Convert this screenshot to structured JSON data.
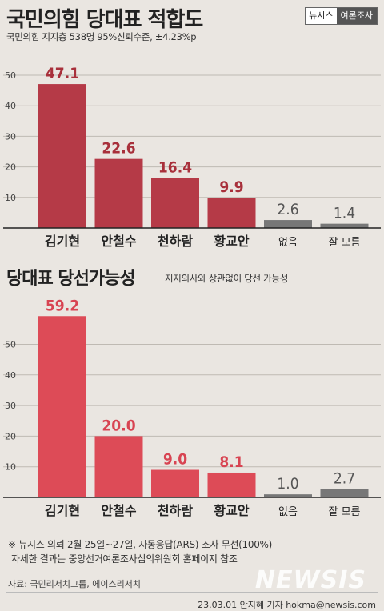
{
  "header": {
    "title": "국민의힘 당대표 적합도",
    "subtitle": "국민의힘 지지층 538명   95%신뢰수준,  ±4.23%p",
    "brand_left": "뉴시스",
    "brand_right": "여론조사"
  },
  "section2": {
    "title": "당대표 당선가능성",
    "note": "지지의사와 상관없이 당선 가능성"
  },
  "colors": {
    "chart1_bar": "#b53a47",
    "chart1_label": "#a8303b",
    "chart2_bar": "#dd4b57",
    "chart2_label": "#d84452",
    "grey_bar": "#777777",
    "grey_label": "#555555"
  },
  "chart_data": [
    {
      "type": "bar",
      "title": "국민의힘 당대표 적합도",
      "categories": [
        "김기현",
        "안철수",
        "천하람",
        "황교안",
        "없음",
        "잘 모름"
      ],
      "values": [
        47.1,
        22.6,
        16.4,
        9.9,
        2.6,
        1.4
      ],
      "value_labels": [
        "47.1",
        "22.6",
        "16.4",
        "9.9",
        "2.6",
        "1.4"
      ],
      "yticks": [
        "10",
        "20",
        "30",
        "40",
        "50"
      ],
      "ylim": [
        0,
        55
      ],
      "grid": true
    },
    {
      "type": "bar",
      "title": "당대표 당선가능성",
      "categories": [
        "김기현",
        "안철수",
        "천하람",
        "황교안",
        "없음",
        "잘 모름"
      ],
      "values": [
        59.2,
        20.0,
        9.0,
        8.1,
        1.0,
        2.7
      ],
      "value_labels": [
        "59.2",
        "20.0",
        "9.0",
        "8.1",
        "1.0",
        "2.7"
      ],
      "yticks": [
        "10",
        "20",
        "30",
        "40",
        "50"
      ],
      "ylim": [
        0,
        62
      ],
      "grid": true
    }
  ],
  "footer": {
    "note1": "※ 뉴시스 의뢰 2월 25일~27일, 자동응답(ARS) 조사 무선(100%)",
    "note2": "자세한 결과는 중앙선거여론조사심의위원회 홈페이지 참조",
    "source": "자료: 국민리서치그룹, 에이스리서치",
    "watermark": "NEWSIS",
    "credit": "23.03.01 안지혜 기자 hokma@newsis.com"
  }
}
